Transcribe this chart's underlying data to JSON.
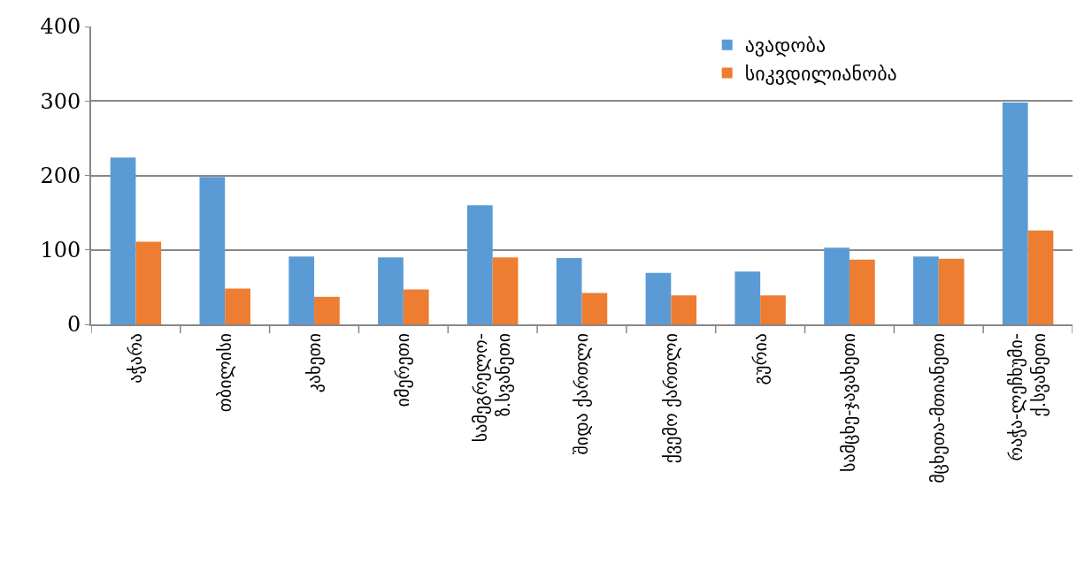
{
  "chart_data": {
    "type": "bar",
    "categories": [
      "აჭარა",
      "თბილისი",
      "კახეთი",
      "იმერეთი",
      "სამეგრელო-\nზ.სვანეთი",
      "შიდა ქართლი",
      "ქვემო ქართლი",
      "გურია",
      "სამცხე-ჯავახეთი",
      "მცხეთა-მთიანეთი",
      "რაჭა-ლეჩხუმი-\nქ.სვანეთი"
    ],
    "series": [
      {
        "name": "ავადობა",
        "color": "#5b9bd5",
        "values": [
          224,
          198,
          91,
          90,
          160,
          89,
          69,
          71,
          103,
          91,
          298
        ]
      },
      {
        "name": "სიკვდილიანობა",
        "color": "#ed7d31",
        "values": [
          111,
          48,
          37,
          47,
          90,
          42,
          39,
          39,
          87,
          88,
          126
        ]
      }
    ],
    "ylim": [
      0,
      400
    ],
    "yticks": [
      0,
      100,
      200,
      300,
      400
    ],
    "grid": "y",
    "legend": "top right"
  }
}
